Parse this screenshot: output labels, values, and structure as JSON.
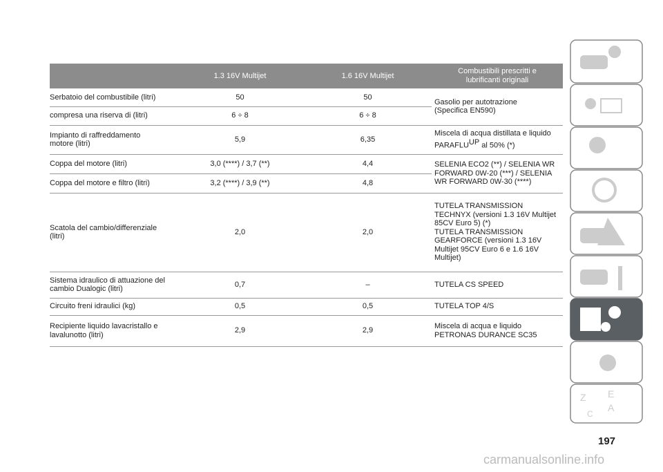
{
  "table": {
    "columns": [
      "1.3 16V Multijet",
      "1.6 16V Multijet",
      "Combustibili prescritti e\nlubrificanti originali"
    ],
    "rows": [
      {
        "label": "Serbatoio del combustibile (litri)",
        "v1": "50",
        "v2": "50",
        "fuel": "Gasolio per autotrazione\n(Specifica EN590)"
      },
      {
        "label": "compresa una riserva di (litri)",
        "v1": "6 ÷ 8",
        "v2": "6 ÷ 8"
      },
      {
        "label": "Impianto di raffreddamento\nmotore (litri)",
        "v1": "5,9",
        "v2": "6,35",
        "fuel_parts": [
          "Miscela di acqua distillata e liquido\nPARAFLU",
          "UP",
          "al 50% (*)"
        ]
      },
      {
        "label": "Coppa del motore (litri)",
        "v1": "3,0 (****) / 3,7 (**)",
        "v2": "4,4",
        "fuel": "SELENIA ECO2 (**) / SELENIA WR\nFORWARD 0W-20 (***) / SELENIA\nWR FORWARD 0W-30 (****)"
      },
      {
        "label": "Coppa del motore e filtro (litri)",
        "v1": "3,2 (****) / 3,9 (**)",
        "v2": "4,8"
      },
      {
        "label": "Scatola del cambio/differenziale\n(litri)",
        "v1": "2,0",
        "v2": "2,0",
        "fuel": "TUTELA TRANSMISSION\nTECHNYX (versioni 1.3 16V Multijet\n85CV Euro 5) (*)\nTUTELA TRANSMISSION\nGEARFORCE (versioni 1.3 16V\nMultijet 95CV Euro 6 e 1.6 16V\nMultijet)"
      },
      {
        "label": "Sistema idraulico di attuazione del\ncambio Dualogic (litri)",
        "v1": "0,7",
        "v2": "–",
        "fuel": "TUTELA CS SPEED"
      },
      {
        "label": "Circuito freni idraulici (kg)",
        "v1": "0,5",
        "v2": "0,5",
        "fuel": "TUTELA TOP 4/S"
      },
      {
        "label": "Recipiente liquido lavacristallo e\nlavalunotto (litri)",
        "v1": "2,9",
        "v2": "2,9",
        "fuel": "Miscela di acqua e liquido\nPETRONAS DURANCE SC35"
      }
    ]
  },
  "page_number": "197",
  "watermark": "carmanualsonline.info"
}
